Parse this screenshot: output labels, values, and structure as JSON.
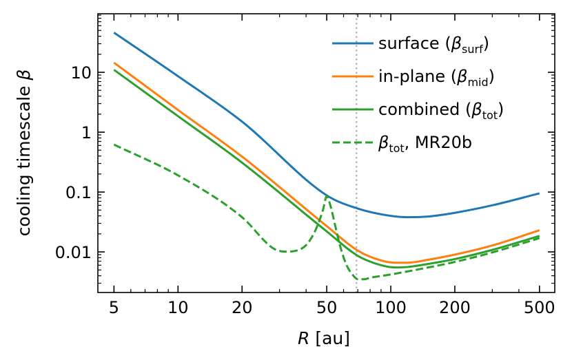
{
  "chart_data": {
    "type": "line",
    "title": "",
    "xlabel": {
      "var": "R",
      "units": " [au]"
    },
    "ylabel": {
      "text": "cooling timescale ",
      "var": "β"
    },
    "xscale": "log",
    "yscale": "log",
    "xlim": [
      4.2,
      590
    ],
    "ylim": [
      0.0021,
      95
    ],
    "xticks": [
      5,
      10,
      20,
      50,
      100,
      200,
      500
    ],
    "xtick_labels": [
      "5",
      "10",
      "20",
      "50",
      "100",
      "200",
      "500"
    ],
    "yticks": [
      0.01,
      0.1,
      1,
      10
    ],
    "ytick_labels": [
      "0.01",
      "0.1",
      "1",
      "10"
    ],
    "vline": {
      "x": 69,
      "color": "#b0b0b0",
      "style": "dotted"
    },
    "legend_position": "top-right",
    "series": [
      {
        "name": "surface",
        "label": {
          "pre": "surface (",
          "var": "β",
          "sub": "surf",
          "post": ")"
        },
        "color": "#1f77b4",
        "dash": "solid",
        "x": [
          5,
          10,
          20,
          50,
          70,
          100,
          120,
          150,
          200,
          300,
          500
        ],
        "y": [
          46,
          8.6,
          1.5,
          0.088,
          0.053,
          0.04,
          0.038,
          0.039,
          0.045,
          0.06,
          0.095
        ]
      },
      {
        "name": "in-plane",
        "label": {
          "pre": "in-plane (",
          "var": "β",
          "sub": "mid",
          "post": ")"
        },
        "color": "#ff7f0e",
        "dash": "solid",
        "x": [
          5,
          10,
          20,
          50,
          70,
          90,
          105,
          120,
          150,
          200,
          300,
          500
        ],
        "y": [
          14.5,
          2.35,
          0.39,
          0.027,
          0.0105,
          0.0072,
          0.0066,
          0.0066,
          0.0074,
          0.009,
          0.0128,
          0.023
        ]
      },
      {
        "name": "combined",
        "label": {
          "pre": "combined (",
          "var": "β",
          "sub": "tot",
          "post": ")"
        },
        "color": "#2ca02c",
        "dash": "solid",
        "x": [
          5,
          10,
          20,
          50,
          70,
          90,
          105,
          120,
          150,
          200,
          300,
          500
        ],
        "y": [
          11,
          1.85,
          0.31,
          0.022,
          0.0086,
          0.006,
          0.0055,
          0.0056,
          0.0063,
          0.0076,
          0.0108,
          0.0185
        ]
      },
      {
        "name": "combined MR20b",
        "label": {
          "pre": "",
          "var": "β",
          "sub": "tot",
          "post": ", MR20b"
        },
        "color": "#2ca02c",
        "dash": "dashed",
        "x": [
          5,
          10,
          20,
          28,
          32,
          36,
          40,
          44,
          48,
          50,
          52,
          55,
          58,
          62,
          66,
          70,
          75,
          80,
          100,
          150,
          200,
          300,
          500
        ],
        "y": [
          0.62,
          0.19,
          0.038,
          0.0115,
          0.0101,
          0.0105,
          0.013,
          0.022,
          0.05,
          0.085,
          0.06,
          0.026,
          0.012,
          0.006,
          0.0042,
          0.0035,
          0.0035,
          0.0037,
          0.0042,
          0.0055,
          0.0068,
          0.0098,
          0.017
        ]
      }
    ]
  }
}
